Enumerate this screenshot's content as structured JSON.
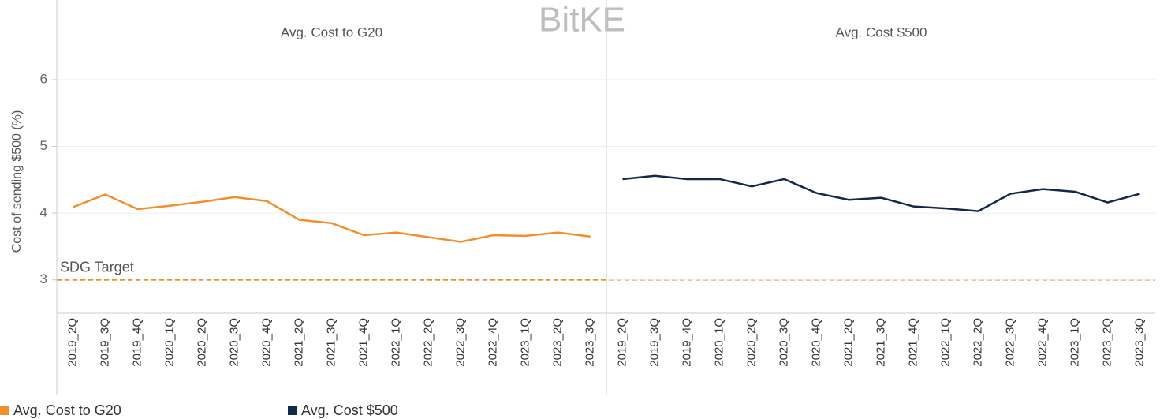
{
  "watermark": "BitKE",
  "chart_data": [
    {
      "type": "line",
      "title": "Avg. Cost to G20",
      "ylabel": "Cost of sending $500 (%)",
      "categories": [
        "2019_2Q",
        "2019_3Q",
        "2019_4Q",
        "2020_1Q",
        "2020_2Q",
        "2020_3Q",
        "2020_4Q",
        "2021_2Q",
        "2021_3Q",
        "2021_4Q",
        "2022_1Q",
        "2022_2Q",
        "2022_3Q",
        "2022_4Q",
        "2023_1Q",
        "2023_2Q",
        "2023_3Q"
      ],
      "series": [
        {
          "name": "Avg. Cost to G20",
          "color": "#f28e2b",
          "values": [
            4.09,
            4.28,
            4.06,
            4.11,
            4.17,
            4.24,
            4.18,
            3.9,
            3.85,
            3.67,
            3.71,
            3.64,
            3.57,
            3.67,
            3.66,
            3.71,
            3.65
          ]
        }
      ],
      "ylim": [
        2.5,
        6.46
      ],
      "yticks": [
        3,
        4,
        5,
        6
      ],
      "grid": true,
      "reference_line": {
        "label": "SDG Target",
        "value": 3,
        "color": "#f28e2b"
      }
    },
    {
      "type": "line",
      "title": "Avg. Cost $500",
      "categories": [
        "2019_2Q",
        "2019_3Q",
        "2019_4Q",
        "2020_1Q",
        "2020_2Q",
        "2020_3Q",
        "2020_4Q",
        "2021_2Q",
        "2021_3Q",
        "2021_4Q",
        "2022_1Q",
        "2022_2Q",
        "2022_3Q",
        "2022_4Q",
        "2023_1Q",
        "2023_2Q",
        "2023_3Q"
      ],
      "series": [
        {
          "name": "Avg. Cost $500",
          "color": "#13294b",
          "values": [
            4.51,
            4.56,
            4.51,
            4.51,
            4.4,
            4.51,
            4.3,
            4.2,
            4.23,
            4.1,
            4.07,
            4.03,
            4.29,
            4.36,
            4.32,
            4.16,
            4.29
          ]
        }
      ],
      "ylim": [
        2.5,
        6.46
      ],
      "yticks": [
        3,
        4,
        5,
        6
      ],
      "grid": true
    }
  ]
}
